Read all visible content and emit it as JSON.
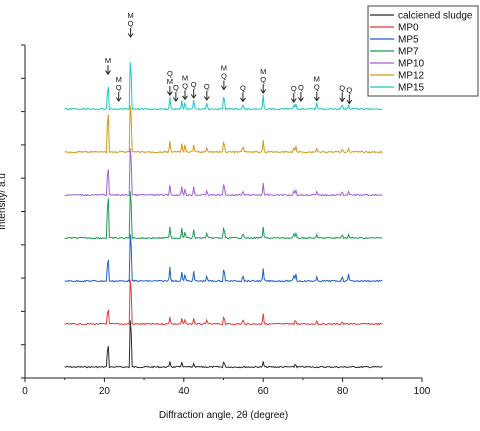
{
  "chart_data": {
    "type": "line",
    "title": "",
    "xlabel": "Diffraction angle, 2θ (degree)",
    "ylabel": "Intensity/ a.u",
    "xlim": [
      0,
      100
    ],
    "x_ticks": [
      "0",
      "20",
      "40",
      "60",
      "80",
      "100"
    ],
    "grid": false,
    "legend_position": "top-right",
    "x_range_of_data": [
      10,
      90
    ],
    "series": [
      {
        "name": "calciened sludge",
        "color": "#2b2b2b",
        "peaks": [
          {
            "x": 20.9,
            "h": 0.45
          },
          {
            "x": 26.6,
            "h": 1.0
          },
          {
            "x": 36.5,
            "h": 0.08
          },
          {
            "x": 39.5,
            "h": 0.07
          },
          {
            "x": 42.5,
            "h": 0.05
          },
          {
            "x": 50.1,
            "h": 0.1
          },
          {
            "x": 60.0,
            "h": 0.08
          },
          {
            "x": 68.1,
            "h": 0.05
          }
        ]
      },
      {
        "name": "MP0",
        "color": "#e23b3b",
        "peaks": [
          {
            "x": 20.9,
            "h": 0.3
          },
          {
            "x": 26.6,
            "h": 0.95
          },
          {
            "x": 36.5,
            "h": 0.1
          },
          {
            "x": 39.5,
            "h": 0.08
          },
          {
            "x": 40.3,
            "h": 0.07
          },
          {
            "x": 42.5,
            "h": 0.08
          },
          {
            "x": 45.8,
            "h": 0.07
          },
          {
            "x": 50.1,
            "h": 0.14
          },
          {
            "x": 54.9,
            "h": 0.08
          },
          {
            "x": 60.0,
            "h": 0.15
          },
          {
            "x": 68.1,
            "h": 0.07
          },
          {
            "x": 73.5,
            "h": 0.04
          },
          {
            "x": 79.9,
            "h": 0.04
          }
        ]
      },
      {
        "name": "MP5",
        "color": "#1f5fc9",
        "peaks": [
          {
            "x": 20.9,
            "h": 0.45
          },
          {
            "x": 26.6,
            "h": 1.0
          },
          {
            "x": 36.5,
            "h": 0.2
          },
          {
            "x": 39.5,
            "h": 0.13
          },
          {
            "x": 40.3,
            "h": 0.11
          },
          {
            "x": 42.5,
            "h": 0.14
          },
          {
            "x": 45.8,
            "h": 0.08
          },
          {
            "x": 50.1,
            "h": 0.24
          },
          {
            "x": 54.9,
            "h": 0.1
          },
          {
            "x": 60.0,
            "h": 0.18
          },
          {
            "x": 67.7,
            "h": 0.09
          },
          {
            "x": 68.2,
            "h": 0.12
          },
          {
            "x": 73.5,
            "h": 0.06
          },
          {
            "x": 79.9,
            "h": 0.08
          },
          {
            "x": 81.5,
            "h": 0.1
          }
        ]
      },
      {
        "name": "MP7",
        "color": "#1e9a54",
        "peaks": [
          {
            "x": 20.9,
            "h": 0.85
          },
          {
            "x": 26.6,
            "h": 1.0
          },
          {
            "x": 36.5,
            "h": 0.16
          },
          {
            "x": 39.5,
            "h": 0.14
          },
          {
            "x": 40.3,
            "h": 0.1
          },
          {
            "x": 42.5,
            "h": 0.12
          },
          {
            "x": 45.8,
            "h": 0.08
          },
          {
            "x": 50.1,
            "h": 0.2
          },
          {
            "x": 54.9,
            "h": 0.08
          },
          {
            "x": 60.0,
            "h": 0.16
          },
          {
            "x": 67.7,
            "h": 0.07
          },
          {
            "x": 68.2,
            "h": 0.08
          },
          {
            "x": 73.5,
            "h": 0.05
          },
          {
            "x": 79.9,
            "h": 0.06
          },
          {
            "x": 81.5,
            "h": 0.05
          }
        ]
      },
      {
        "name": "MP10",
        "color": "#a45ed6",
        "peaks": [
          {
            "x": 20.9,
            "h": 0.55
          },
          {
            "x": 26.6,
            "h": 1.0
          },
          {
            "x": 36.5,
            "h": 0.14
          },
          {
            "x": 39.5,
            "h": 0.12
          },
          {
            "x": 40.3,
            "h": 0.1
          },
          {
            "x": 42.5,
            "h": 0.12
          },
          {
            "x": 45.8,
            "h": 0.07
          },
          {
            "x": 50.1,
            "h": 0.22
          },
          {
            "x": 54.9,
            "h": 0.07
          },
          {
            "x": 60.0,
            "h": 0.17
          },
          {
            "x": 67.7,
            "h": 0.07
          },
          {
            "x": 68.2,
            "h": 0.08
          },
          {
            "x": 73.5,
            "h": 0.05
          },
          {
            "x": 79.9,
            "h": 0.06
          },
          {
            "x": 81.5,
            "h": 0.05
          }
        ]
      },
      {
        "name": "MP12",
        "color": "#d39a12",
        "peaks": [
          {
            "x": 20.9,
            "h": 0.8
          },
          {
            "x": 26.6,
            "h": 1.0
          },
          {
            "x": 36.5,
            "h": 0.16
          },
          {
            "x": 39.5,
            "h": 0.12
          },
          {
            "x": 40.3,
            "h": 0.12
          },
          {
            "x": 42.5,
            "h": 0.1
          },
          {
            "x": 45.8,
            "h": 0.07
          },
          {
            "x": 50.1,
            "h": 0.2
          },
          {
            "x": 54.9,
            "h": 0.1
          },
          {
            "x": 60.0,
            "h": 0.17
          },
          {
            "x": 67.7,
            "h": 0.07
          },
          {
            "x": 68.2,
            "h": 0.09
          },
          {
            "x": 73.5,
            "h": 0.05
          },
          {
            "x": 79.9,
            "h": 0.05
          },
          {
            "x": 81.5,
            "h": 0.05
          }
        ]
      },
      {
        "name": "MP15",
        "color": "#1ec7c7",
        "peaks": [
          {
            "x": 20.9,
            "h": 0.47
          },
          {
            "x": 26.6,
            "h": 1.0
          },
          {
            "x": 36.5,
            "h": 0.17
          },
          {
            "x": 39.5,
            "h": 0.12
          },
          {
            "x": 40.3,
            "h": 0.11
          },
          {
            "x": 42.5,
            "h": 0.13
          },
          {
            "x": 45.8,
            "h": 0.1
          },
          {
            "x": 50.1,
            "h": 0.25
          },
          {
            "x": 54.9,
            "h": 0.08
          },
          {
            "x": 60.0,
            "h": 0.2
          },
          {
            "x": 67.7,
            "h": 0.07
          },
          {
            "x": 68.2,
            "h": 0.09
          },
          {
            "x": 73.5,
            "h": 0.09
          },
          {
            "x": 79.9,
            "h": 0.08
          },
          {
            "x": 81.5,
            "h": 0.05
          }
        ]
      }
    ],
    "annotations": [
      {
        "x": 20.9,
        "labels": [
          "M"
        ]
      },
      {
        "x": 23.6,
        "labels": [
          "M",
          "Q"
        ]
      },
      {
        "x": 26.6,
        "labels": [
          "M",
          "Q"
        ]
      },
      {
        "x": 36.5,
        "labels": [
          "Q",
          "M"
        ]
      },
      {
        "x": 38.0,
        "labels": [
          "Q"
        ]
      },
      {
        "x": 40.3,
        "labels": [
          "M",
          "Q"
        ]
      },
      {
        "x": 42.5,
        "labels": [
          "Q"
        ]
      },
      {
        "x": 45.8,
        "labels": [
          "Q"
        ]
      },
      {
        "x": 50.1,
        "labels": [
          "M",
          "Q"
        ]
      },
      {
        "x": 54.9,
        "labels": [
          "Q"
        ]
      },
      {
        "x": 60.0,
        "labels": [
          "M",
          "Q"
        ]
      },
      {
        "x": 67.7,
        "labels": [
          "Q"
        ]
      },
      {
        "x": 69.5,
        "labels": [
          "Q"
        ]
      },
      {
        "x": 73.5,
        "labels": [
          "M",
          "Q"
        ]
      },
      {
        "x": 79.9,
        "labels": [
          "Q"
        ]
      },
      {
        "x": 81.7,
        "labels": [
          "Q"
        ]
      }
    ]
  }
}
